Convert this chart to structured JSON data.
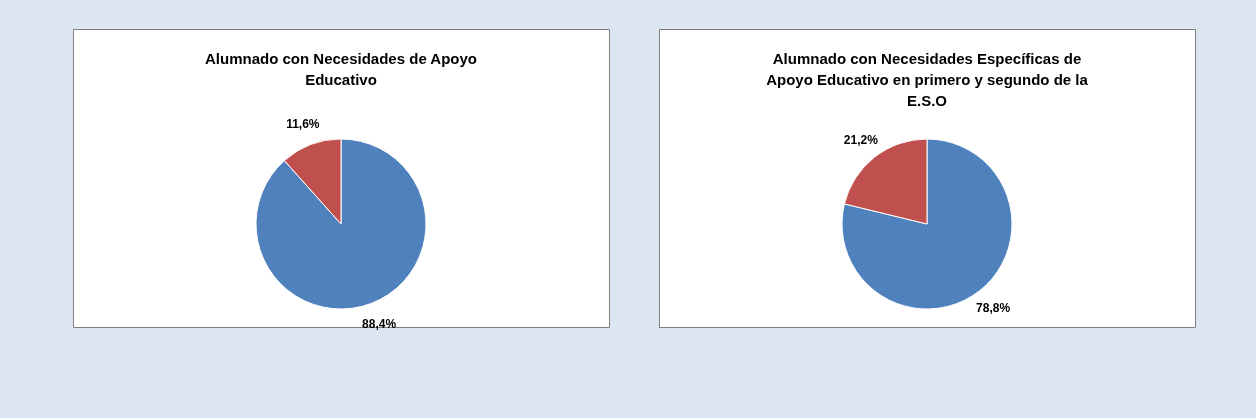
{
  "chart_data": [
    {
      "type": "pie",
      "title": "Alumnado con Necesidades de Apoyo Educativo",
      "categories": [
        null,
        null
      ],
      "values": [
        88.4,
        11.6
      ],
      "colors": [
        "#4f81bd",
        "#c0504d"
      ],
      "value_labels": [
        "88,4%",
        "11,6%"
      ],
      "legend": false
    },
    {
      "type": "pie",
      "title": "Alumnado con Necesidades Específicas de Apoyo Educativo en primero y segundo de la E.S.O",
      "categories": [
        null,
        null
      ],
      "values": [
        78.8,
        21.2
      ],
      "colors": [
        "#4f81bd",
        "#c0504d"
      ],
      "value_labels": [
        "78,8%",
        "21,2%"
      ],
      "legend": false
    }
  ]
}
